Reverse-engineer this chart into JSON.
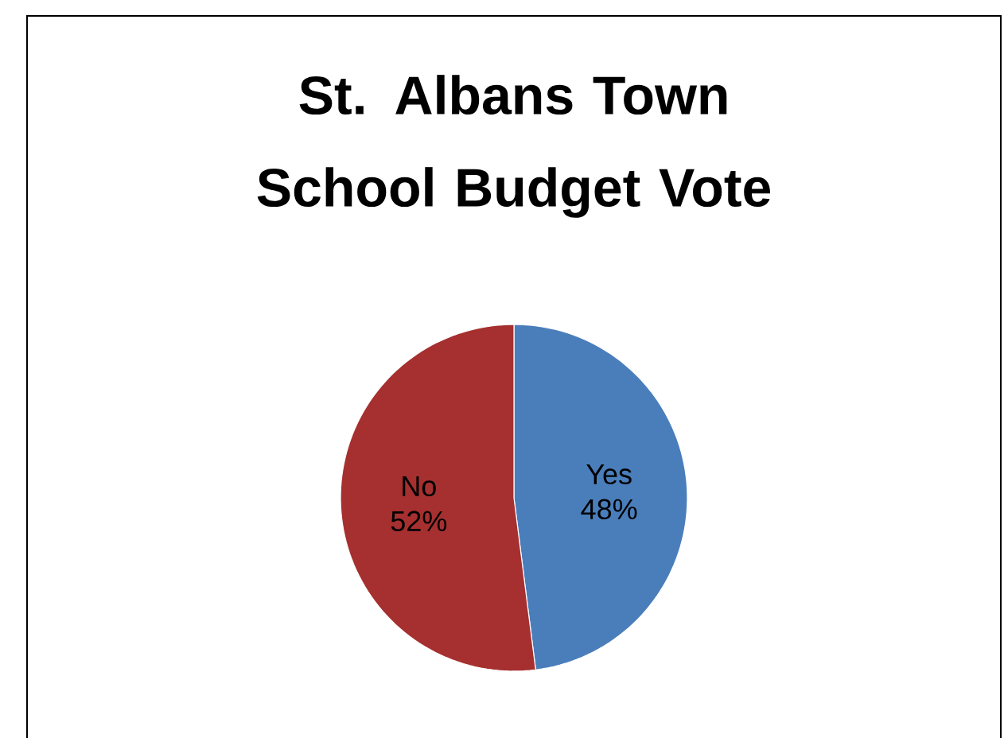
{
  "chart_data": {
    "type": "pie",
    "title": "St. Albans Town\nSchool Budget Vote",
    "categories": [
      "Yes",
      "No"
    ],
    "values": [
      48,
      52
    ],
    "value_labels": [
      "48%",
      "52%"
    ],
    "colors": [
      "#4a7ebb",
      "#a5302f"
    ]
  }
}
